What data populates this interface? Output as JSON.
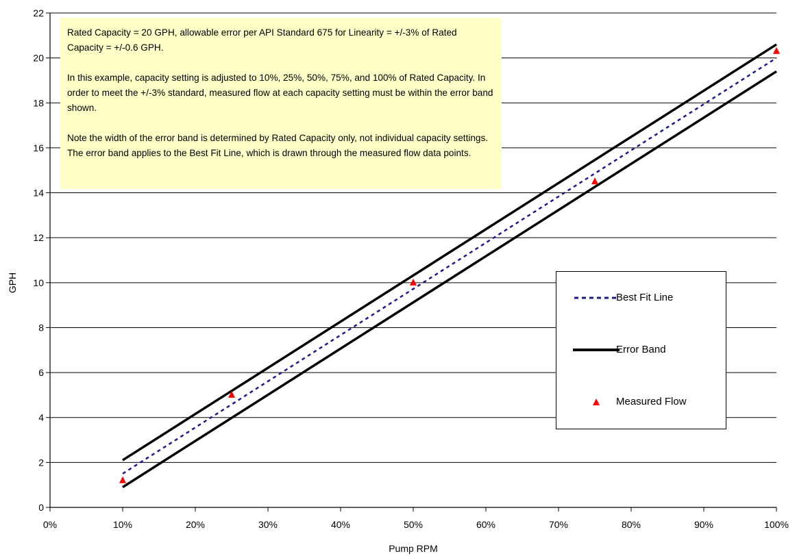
{
  "chart_data": {
    "type": "line",
    "xlabel": "Pump RPM",
    "ylabel": "GPH",
    "xlim": [
      0,
      100
    ],
    "ylim": [
      0,
      22
    ],
    "x_ticks": [
      "0%",
      "10%",
      "20%",
      "30%",
      "40%",
      "50%",
      "60%",
      "70%",
      "80%",
      "90%",
      "100%"
    ],
    "y_ticks": [
      "0",
      "2",
      "4",
      "6",
      "8",
      "10",
      "12",
      "14",
      "16",
      "18",
      "20",
      "22"
    ],
    "grid": "horizontal",
    "legend_position": "right",
    "series": [
      {
        "name": "Best Fit Line",
        "style": "dotted",
        "color": "#1a1a8c",
        "x": [
          10,
          100
        ],
        "y": [
          1.5,
          20.0
        ]
      },
      {
        "name": "Error Band",
        "style": "solid",
        "color": "#000000",
        "x": [
          10,
          100
        ],
        "y": [
          2.1,
          20.6
        ]
      },
      {
        "name": "Error Band",
        "style": "solid",
        "color": "#000000",
        "x": [
          10,
          100
        ],
        "y": [
          0.9,
          19.4
        ]
      },
      {
        "name": "Measured Flow",
        "style": "marker-triangle",
        "color": "#ff0000",
        "x": [
          10,
          25,
          50,
          75,
          100
        ],
        "y": [
          1.2,
          5.0,
          10.0,
          14.5,
          20.3
        ]
      }
    ],
    "annotation": [
      "Rated Capacity = 20 GPH, allowable error per API Standard 675 for Linearity = +/-3% of Rated Capacity = +/-0.6 GPH.",
      "In this example, capacity setting is adjusted to 10%, 25%, 50%, 75%, and 100% of Rated Capacity.  In order to meet the +/-3% standard, measured flow at each capacity setting must be within the error band shown.",
      "Note the width of the error band is determined by Rated Capacity only, not individual capacity settings.  The error band applies to the Best Fit Line, which is drawn through the measured flow data points."
    ],
    "legend": {
      "best_fit": "Best Fit Line",
      "error_band": "Error Band",
      "measured": "Measured Flow"
    }
  }
}
